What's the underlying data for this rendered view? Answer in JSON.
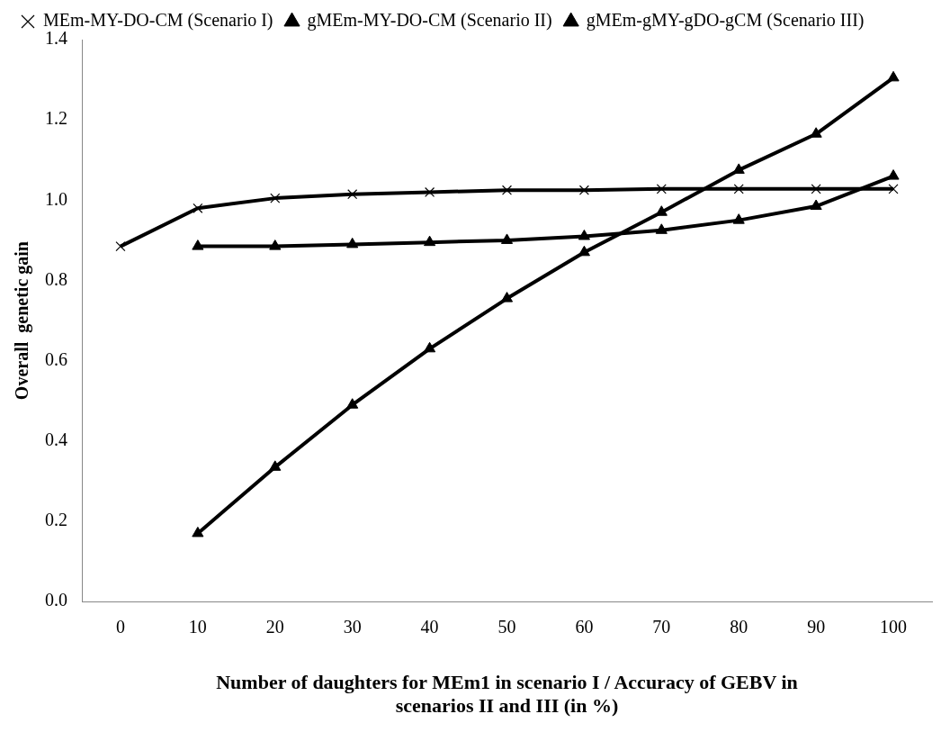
{
  "chart_data": {
    "type": "line",
    "xlabel": "Number of daughters for MEm1 in scenario I / Accuracy of GEBV in scenarios II and III (in %)",
    "ylabel": "Overall  genetic gain",
    "categories": [
      "0",
      "10",
      "20",
      "30",
      "40",
      "50",
      "60",
      "70",
      "80",
      "90",
      "100"
    ],
    "series": [
      {
        "name": "MEm-MY-DO-CM (Scenario I)",
        "color": "#000000",
        "marker": "cross",
        "values": [
          0.885,
          0.98,
          1.005,
          1.015,
          1.02,
          1.025,
          1.025,
          1.028,
          1.028,
          1.028,
          1.028
        ]
      },
      {
        "name": "gMEm-MY-DO-CM (Scenario II)",
        "color": "#000000",
        "marker": "triangle",
        "values": [
          null,
          0.885,
          0.885,
          0.89,
          0.895,
          0.9,
          0.91,
          0.925,
          0.95,
          0.985,
          1.06
        ]
      },
      {
        "name": "gMEm-gMY-gDO-gCM (Scenario III)",
        "color": "#000000",
        "marker": "triangle",
        "values": [
          null,
          0.17,
          0.335,
          0.49,
          0.63,
          0.755,
          0.87,
          0.97,
          1.075,
          1.165,
          1.305
        ]
      }
    ],
    "ylim": [
      0,
      1.4
    ],
    "yticks": [
      {
        "value": 0,
        "label": "0.0"
      },
      {
        "value": 0.2,
        "label": "0.2"
      },
      {
        "value": 0.4,
        "label": "0.4"
      },
      {
        "value": 0.6,
        "label": "0.6"
      },
      {
        "value": 0.8,
        "label": "0.8"
      },
      {
        "value": 1,
        "label": "1.0"
      },
      {
        "value": 1.2,
        "label": "1.2"
      },
      {
        "value": 1.4,
        "label": "1.4"
      }
    ],
    "grid": false,
    "legend": "top",
    "line_style": "solid"
  }
}
